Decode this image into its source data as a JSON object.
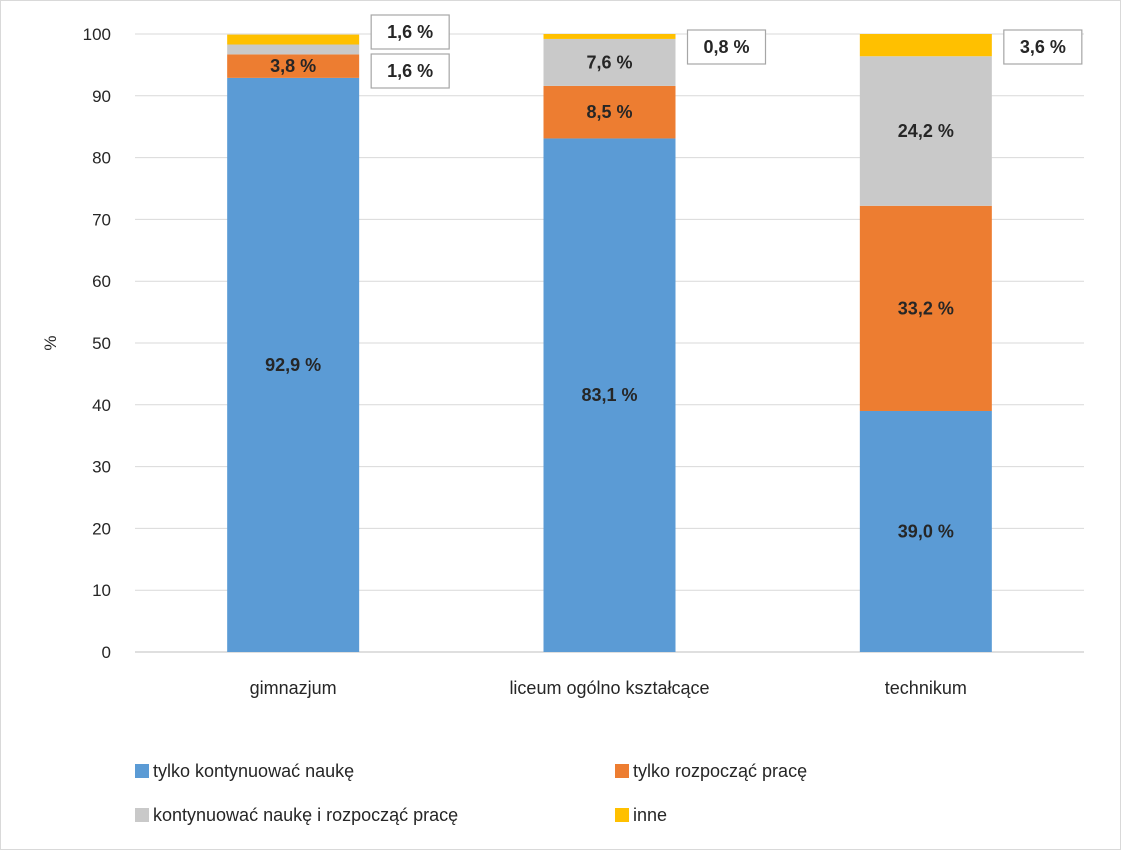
{
  "chart_data": {
    "type": "bar",
    "stacked": true,
    "title": "",
    "xlabel": "",
    "ylabel": "%",
    "ylim": [
      0,
      100
    ],
    "yticks": [
      0,
      10,
      20,
      30,
      40,
      50,
      60,
      70,
      80,
      90,
      100
    ],
    "grid": true,
    "legend_position": "bottom",
    "categories": [
      "gimnazjum",
      "liceum ogólno kształcące",
      "technikum"
    ],
    "series": [
      {
        "name": "tylko kontynuować naukę",
        "color": "#5b9bd5",
        "values": [
          92.9,
          83.1,
          39.0
        ],
        "labels": [
          "92,9 %",
          "83,1 %",
          "39,0 %"
        ]
      },
      {
        "name": "tylko rozpocząć pracę",
        "color": "#ed7d31",
        "values": [
          3.8,
          8.5,
          33.2
        ],
        "labels": [
          "3,8 %",
          "8,5 %",
          "33,2 %"
        ]
      },
      {
        "name": "kontynuować naukę i rozpocząć pracę",
        "color": "#c9c9c9",
        "values": [
          1.6,
          7.6,
          24.2
        ],
        "labels": [
          "1,6 %",
          "7,6 %",
          "24,2 %"
        ]
      },
      {
        "name": "inne",
        "color": "#ffc000",
        "values": [
          1.6,
          0.8,
          3.6
        ],
        "labels": [
          "1,6 %",
          "0,8 %",
          "3,6 %"
        ]
      }
    ]
  }
}
